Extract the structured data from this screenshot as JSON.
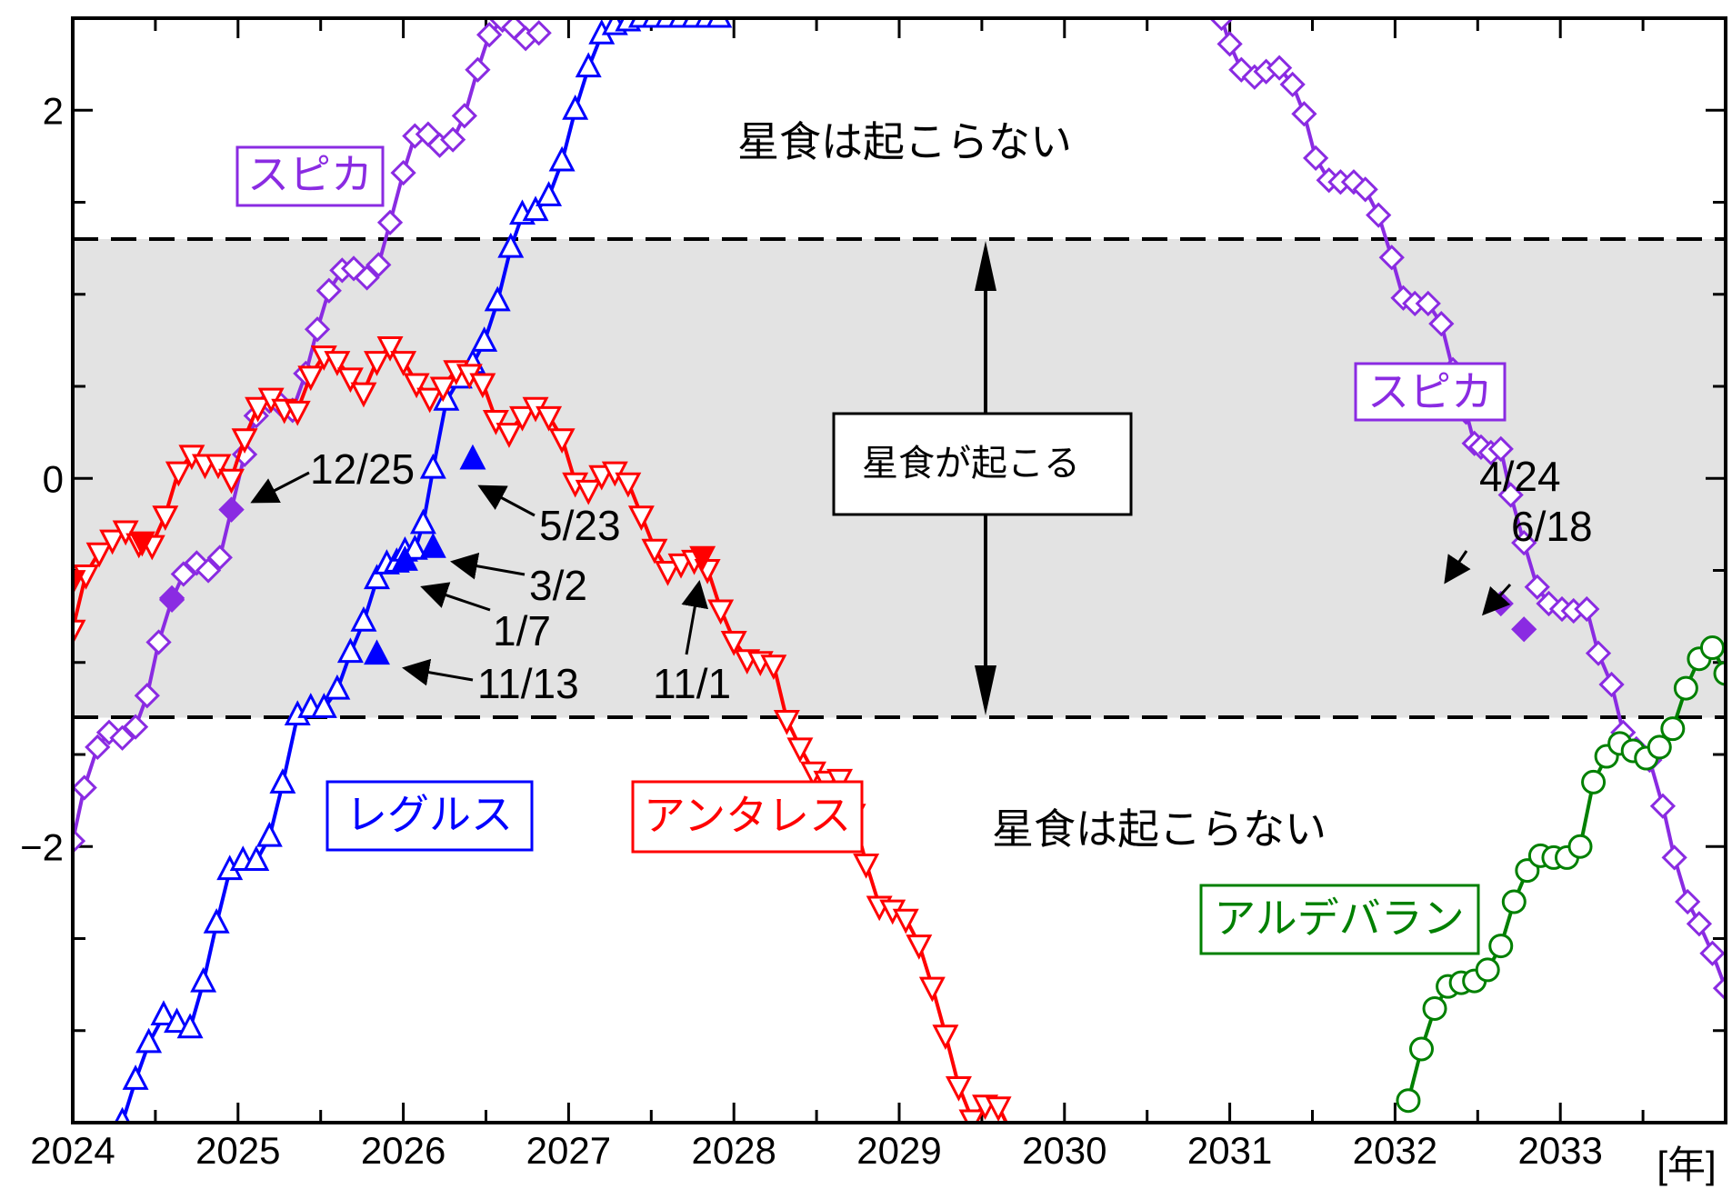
{
  "chart_data": {
    "type": "line",
    "xlim": [
      2024,
      2034
    ],
    "ylim": [
      -3.5,
      2.5
    ],
    "x_ticks": [
      "2024",
      "2025",
      "2026",
      "2027",
      "2028",
      "2029",
      "2030",
      "2031",
      "2032",
      "2033"
    ],
    "x_unit": "[年]",
    "y_ticks": [
      "−2",
      "0",
      "2"
    ],
    "occultation_band": {
      "ymin": -1.3,
      "ymax": 1.3
    },
    "region_labels": {
      "above": "星食は起こらない",
      "below": "星食は起こらない",
      "band": "星食が起こる"
    },
    "series": [
      {
        "name": "スピカ",
        "color": "#8a2be2",
        "marker": "diamond",
        "x": [
          2024.0,
          2024.07,
          2024.15,
          2024.22,
          2024.3,
          2024.38,
          2024.45,
          2024.52,
          2024.6,
          2024.67,
          2024.75,
          2024.82,
          2024.89,
          2024.96,
          2025.04,
          2025.11,
          2025.19,
          2025.26,
          2025.33,
          2025.41,
          2025.48,
          2025.55,
          2025.63,
          2025.7,
          2025.78,
          2025.85,
          2025.92,
          2026.0,
          2026.07,
          2026.15,
          2026.22,
          2026.3,
          2026.37,
          2026.45,
          2026.52,
          2026.6,
          2026.67,
          2026.74,
          2026.82
        ],
        "y": [
          -1.97,
          -1.68,
          -1.46,
          -1.38,
          -1.41,
          -1.35,
          -1.18,
          -0.89,
          -0.66,
          -0.52,
          -0.46,
          -0.5,
          -0.43,
          -0.17,
          0.13,
          0.34,
          0.42,
          0.4,
          0.37,
          0.57,
          0.81,
          1.02,
          1.13,
          1.14,
          1.09,
          1.16,
          1.39,
          1.66,
          1.86,
          1.87,
          1.81,
          1.84,
          1.97,
          2.22,
          2.41,
          2.49,
          2.45,
          2.39,
          2.42
        ]
      },
      {
        "name": "スピカ",
        "color": "#8a2be2",
        "marker": "diamond",
        "x": [
          2030.95,
          2031.0,
          2031.07,
          2031.15,
          2031.22,
          2031.3,
          2031.38,
          2031.45,
          2031.52,
          2031.6,
          2031.67,
          2031.75,
          2031.82,
          2031.9,
          2031.98,
          2032.05,
          2032.12,
          2032.2,
          2032.28,
          2032.35,
          2032.43,
          2032.48,
          2032.52,
          2032.58,
          2032.64,
          2032.7,
          2032.78,
          2032.86,
          2032.93,
          2033.01,
          2033.08,
          2033.16,
          2033.23,
          2033.31,
          2033.38,
          2033.46,
          2033.54,
          2033.62,
          2033.69,
          2033.77,
          2033.84,
          2033.92,
          2034.0
        ],
        "y": [
          2.5,
          2.36,
          2.22,
          2.18,
          2.21,
          2.23,
          2.14,
          1.98,
          1.74,
          1.62,
          1.61,
          1.61,
          1.57,
          1.43,
          1.2,
          0.98,
          0.95,
          0.95,
          0.84,
          0.59,
          0.36,
          0.19,
          0.17,
          0.14,
          0.16,
          -0.09,
          -0.35,
          -0.59,
          -0.68,
          -0.71,
          -0.72,
          -0.71,
          -0.95,
          -1.12,
          -1.38,
          -1.47,
          -1.53,
          -1.78,
          -2.06,
          -2.3,
          -2.42,
          -2.58,
          -2.77
        ]
      },
      {
        "name": "レグルス",
        "color": "#0000ff",
        "marker": "triangle-up",
        "x": [
          2024.3,
          2024.38,
          2024.46,
          2024.55,
          2024.63,
          2024.71,
          2024.79,
          2024.87,
          2024.95,
          2025.03,
          2025.11,
          2025.19,
          2025.27,
          2025.36,
          2025.44,
          2025.52,
          2025.6,
          2025.68,
          2025.76,
          2025.84,
          2025.9,
          2025.96,
          2026.01,
          2026.07,
          2026.12,
          2026.18,
          2026.26,
          2026.34,
          2026.42,
          2026.49,
          2026.57,
          2026.65,
          2026.72,
          2026.8,
          2026.88,
          2026.96,
          2027.04,
          2027.12,
          2027.2,
          2027.28,
          2027.36,
          2027.44,
          2027.52,
          2027.6,
          2027.68,
          2027.76,
          2027.84,
          2027.91
        ],
        "y": [
          -3.5,
          -3.27,
          -3.07,
          -2.92,
          -2.96,
          -2.99,
          -2.74,
          -2.42,
          -2.13,
          -2.08,
          -2.08,
          -1.95,
          -1.66,
          -1.29,
          -1.25,
          -1.25,
          -1.15,
          -0.95,
          -0.78,
          -0.55,
          -0.47,
          -0.46,
          -0.4,
          -0.39,
          -0.25,
          0.05,
          0.42,
          0.54,
          0.62,
          0.74,
          0.96,
          1.25,
          1.43,
          1.45,
          1.53,
          1.72,
          2.0,
          2.23,
          2.41,
          2.46,
          2.48,
          2.5,
          2.5,
          2.5,
          2.5,
          2.5,
          2.5,
          2.5
        ],
        "highlighted": [
          {
            "label": "11/13",
            "x": 2025.84,
            "y": -0.96
          },
          {
            "label": "1/7",
            "x": 2026.01,
            "y": -0.45
          },
          {
            "label": "3/2",
            "x": 2026.18,
            "y": -0.38
          },
          {
            "label": "5/23",
            "x": 2026.42,
            "y": 0.1
          }
        ]
      },
      {
        "name": "アンタレス",
        "color": "#ff0000",
        "marker": "triangle-down",
        "x": [
          2024.0,
          2024.08,
          2024.16,
          2024.24,
          2024.32,
          2024.4,
          2024.48,
          2024.56,
          2024.64,
          2024.72,
          2024.8,
          2024.88,
          2024.96,
          2025.04,
          2025.12,
          2025.2,
          2025.28,
          2025.36,
          2025.44,
          2025.52,
          2025.6,
          2025.68,
          2025.76,
          2025.84,
          2025.92,
          2026.0,
          2026.08,
          2026.16,
          2026.24,
          2026.32,
          2026.4,
          2026.48,
          2026.56,
          2026.64,
          2026.72,
          2026.8,
          2026.88,
          2026.96,
          2027.04,
          2027.12,
          2027.2,
          2027.28,
          2027.36,
          2027.44,
          2027.52,
          2027.6,
          2027.68,
          2027.76,
          2027.84,
          2027.92,
          2028.0,
          2028.08,
          2028.16,
          2028.24,
          2028.32,
          2028.4,
          2028.48,
          2028.56,
          2028.64,
          2028.72,
          2028.8,
          2028.88,
          2028.96,
          2029.04,
          2029.12,
          2029.2,
          2029.28,
          2029.36,
          2029.44,
          2029.52,
          2029.6,
          2029.68,
          2029.76,
          2029.84,
          2029.92,
          2030.0,
          2030.08,
          2030.16
        ],
        "y": [
          -0.82,
          -0.52,
          -0.4,
          -0.33,
          -0.28,
          -0.35,
          -0.36,
          -0.2,
          0.04,
          0.13,
          0.08,
          0.08,
          0.0,
          0.22,
          0.39,
          0.44,
          0.38,
          0.37,
          0.56,
          0.67,
          0.64,
          0.55,
          0.47,
          0.64,
          0.72,
          0.64,
          0.52,
          0.44,
          0.5,
          0.59,
          0.57,
          0.52,
          0.32,
          0.25,
          0.34,
          0.39,
          0.34,
          0.22,
          -0.02,
          -0.06,
          0.02,
          0.04,
          -0.02,
          -0.2,
          -0.38,
          -0.5,
          -0.46,
          -0.44,
          -0.49,
          -0.71,
          -0.88,
          -0.98,
          -0.99,
          -1.01,
          -1.31,
          -1.46,
          -1.59,
          -1.64,
          -1.63,
          -1.82,
          -2.09,
          -2.32,
          -2.34,
          -2.39,
          -2.53,
          -2.76,
          -3.02,
          -3.3,
          -3.48,
          -3.4,
          -3.41,
          -3.56,
          -3.62,
          -3.62,
          -3.62,
          -3.62,
          -3.62,
          -3.62
        ],
        "highlighted": [
          {
            "label": "",
            "x": 2024.0,
            "y": -0.55
          },
          {
            "label": "",
            "x": 2024.42,
            "y": -0.34
          },
          {
            "label": "11/1",
            "x": 2027.81,
            "y": -0.42
          }
        ]
      },
      {
        "name": "アルデバラン",
        "color": "#008000",
        "marker": "circle",
        "x": [
          2032.08,
          2032.16,
          2032.24,
          2032.32,
          2032.4,
          2032.48,
          2032.56,
          2032.64,
          2032.72,
          2032.8,
          2032.88,
          2032.96,
          2033.04,
          2033.12,
          2033.2,
          2033.28,
          2033.36,
          2033.44,
          2033.52,
          2033.6,
          2033.68,
          2033.76,
          2033.84,
          2033.92,
          2034.0
        ],
        "y": [
          -3.38,
          -3.1,
          -2.88,
          -2.76,
          -2.74,
          -2.73,
          -2.67,
          -2.54,
          -2.3,
          -2.13,
          -2.05,
          -2.06,
          -2.06,
          -2.0,
          -1.65,
          -1.51,
          -1.44,
          -1.48,
          -1.52,
          -1.46,
          -1.36,
          -1.14,
          -0.98,
          -0.92,
          -1.06
        ],
        "highlighted": []
      }
    ],
    "spica_highlighted": [
      {
        "label": "",
        "x": 2024.6,
        "y": -0.65
      },
      {
        "label": "12/25",
        "x": 2024.96,
        "y": -0.17
      },
      {
        "label": "4/24",
        "x": 2032.64,
        "y": -0.68
      },
      {
        "label": "6/18",
        "x": 2032.78,
        "y": -0.82
      }
    ]
  },
  "legend_labels": {
    "spica_1": "スピカ",
    "spica_2": "スピカ",
    "regulus": "レグルス",
    "antares": "アンタレス",
    "aldebaran": "アルデバラン"
  },
  "annotations": [
    "12/25",
    "5/23",
    "3/2",
    "1/7",
    "11/13",
    "11/1",
    "4/24",
    "6/18"
  ]
}
